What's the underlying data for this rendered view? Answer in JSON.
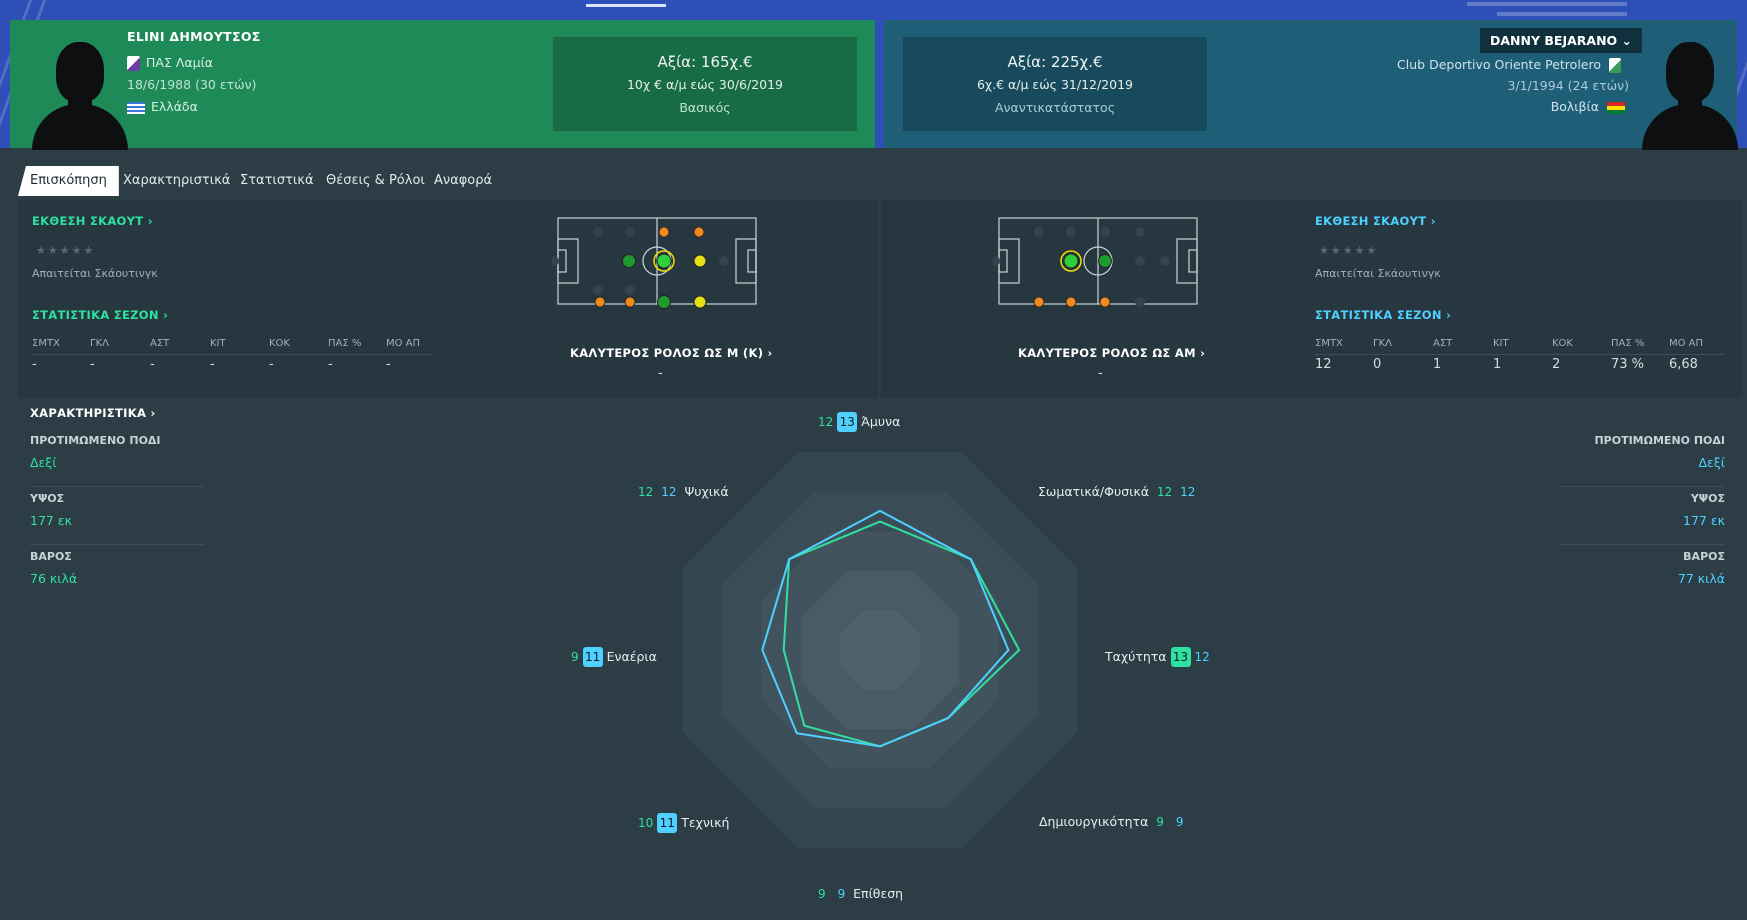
{
  "left_player": {
    "name": "ELINI ΔΗΜΟΥΤΣΟΣ",
    "club": "ΠΑΣ Λαμία",
    "dob": "18/6/1988 (30 ετών)",
    "nation": "Ελλάδα",
    "value": "Αξία: 165χ.€",
    "contract": "10χ € α/μ εώς 30/6/2019",
    "status": "Βασικός"
  },
  "right_player": {
    "name": "DANNY BEJARANO",
    "club": "Club Deportivo Oriente Petrolero",
    "dob": "3/1/1994 (24 ετών)",
    "nation": "Βολιβία",
    "value": "Αξία: 225χ.€",
    "contract": "6χ.€ α/μ εώς 31/12/2019",
    "status": "Αναντικατάστατος"
  },
  "tabs": [
    "Επισκόπηση",
    "Χαρακτηριστικά",
    "Στατιστικά",
    "Θέσεις & Ρόλοι",
    "Αναφορά"
  ],
  "left_panel": {
    "scout_title": "ΕΚΘΕΣΗ ΣΚΑΟΥΤ",
    "stars": "★★★★★",
    "scout_note": "Απαιτείται Σκάουτινγκ",
    "stats_title": "ΣΤΑΤΙΣΤΙΚΑ ΣΕΖΟΝ",
    "headers": [
      "ΣΜΤΧ",
      "ΓΚΛ",
      "ΑΣΤ",
      "ΚΙΤ",
      "ΚΟΚ",
      "ΠΑΣ %",
      "ΜΟ ΑΠ"
    ],
    "values": [
      "-",
      "-",
      "-",
      "-",
      "-",
      "-",
      "-"
    ],
    "best_role": "ΚΑΛΥΤΕΡΟΣ ΡΟΛΟΣ ΩΣ Μ (Κ)",
    "best_role_value": "-"
  },
  "right_panel": {
    "scout_title": "ΕΚΘΕΣΗ ΣΚΑΟΥΤ",
    "stars": "★★★★★",
    "scout_note": "Απαιτείται Σκάουτινγκ",
    "stats_title": "ΣΤΑΤΙΣΤΙΚΑ ΣΕΖΟΝ",
    "headers": [
      "ΣΜΤΧ",
      "ΓΚΛ",
      "ΑΣΤ",
      "ΚΙΤ",
      "ΚΟΚ",
      "ΠΑΣ %",
      "ΜΟ ΑΠ"
    ],
    "values": [
      "12",
      "0",
      "1",
      "1",
      "2",
      "73 %",
      "6,68"
    ],
    "best_role": "ΚΑΛΥΤΕΡΟΣ ΡΟΛΟΣ ΩΣ ΑΜ",
    "best_role_value": "-"
  },
  "attributes": {
    "title": "ΧΑΡΑΚΤΗΡΙΣΤΙΚΑ",
    "foot_label": "ΠΡΟΤΙΜΩΜΕΝΟ ΠΟΔΙ",
    "height_label": "ΥΨΟΣ",
    "weight_label": "ΒΑΡΟΣ",
    "left": {
      "foot": "Δεξί",
      "height": "177 εκ",
      "weight": "76 κιλά"
    },
    "right": {
      "foot": "Δεξί",
      "height": "177 εκ",
      "weight": "77 κιλά"
    }
  },
  "chart_data": {
    "type": "radar",
    "axes": [
      "Άμυνα",
      "Σωματικά/Φυσικά",
      "Ταχύτητα",
      "Δημιουργικότητα",
      "Επίθεση",
      "Τεχνική",
      "Εναέρια",
      "Ψυχικά"
    ],
    "rmax": 20,
    "series": [
      {
        "values": [
          12,
          12,
          13,
          9,
          9,
          10,
          9,
          12
        ],
        "color": "#2fe0a0"
      },
      {
        "values": [
          13,
          12,
          12,
          9,
          9,
          11,
          11,
          12
        ],
        "color": "#4fd0ff"
      }
    ],
    "labels": {
      "amyna": {
        "g": "12",
        "c": "13",
        "t": "Άμυνα"
      },
      "somatika": {
        "g": "12",
        "c": "12",
        "t": "Σωματικά/Φυσικά"
      },
      "taxytita": {
        "g": "13",
        "c": "12",
        "t": "Ταχύτητα"
      },
      "dimiourgikotita": {
        "g": "9",
        "c": "9",
        "t": "Δημιουργικότητα"
      },
      "epithesi": {
        "g": "9",
        "c": "9",
        "t": "Επίθεση"
      },
      "texniki": {
        "g": "10",
        "c": "11",
        "t": "Τεχνική"
      },
      "enaeria": {
        "g": "9",
        "c": "11",
        "t": "Εναέρια"
      },
      "psyxika": {
        "g": "12",
        "c": "12",
        "t": "Ψυχικά"
      }
    }
  },
  "colors": {
    "accent_green": "#2fe0a0",
    "accent_blue": "#4fd0ff",
    "left_card": "#1d8a57",
    "right_card": "#1f5e77"
  }
}
